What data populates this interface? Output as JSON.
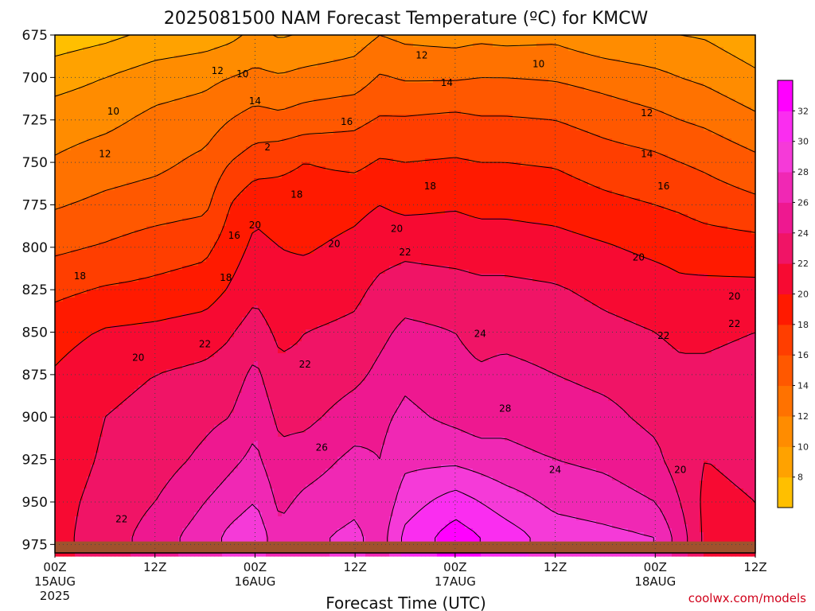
{
  "chart_data": {
    "type": "heatmap",
    "title": "2025081500 NAM Forecast Temperature (ºC) for KMCW",
    "xlabel": "Forecast Time (UTC)",
    "ylabel": "",
    "credit": "coolwx.com/models",
    "y_axis": {
      "reversed": true,
      "range": [
        675,
        980
      ],
      "ticks": [
        675,
        700,
        725,
        750,
        775,
        800,
        825,
        850,
        875,
        900,
        925,
        950,
        975
      ],
      "tick_labels": [
        "675",
        "700",
        "725",
        "750",
        "775",
        "800",
        "825",
        "850",
        "875",
        "900",
        "925",
        "950",
        "975"
      ]
    },
    "x_axis": {
      "range_hours": [
        0,
        84
      ],
      "grid": "dotted",
      "ticks": [
        {
          "hour": 0,
          "label": "00Z",
          "date": "15AUG",
          "year": "2025"
        },
        {
          "hour": 12,
          "label": "12Z",
          "date": "",
          "year": ""
        },
        {
          "hour": 24,
          "label": "00Z",
          "date": "16AUG",
          "year": ""
        },
        {
          "hour": 36,
          "label": "12Z",
          "date": "",
          "year": ""
        },
        {
          "hour": 48,
          "label": "00Z",
          "date": "17AUG",
          "year": ""
        },
        {
          "hour": 60,
          "label": "12Z",
          "date": "",
          "year": ""
        },
        {
          "hour": 72,
          "label": "00Z",
          "date": "18AUG",
          "year": ""
        },
        {
          "hour": 84,
          "label": "12Z",
          "date": "",
          "year": ""
        }
      ]
    },
    "colorbar": {
      "levels": [
        6,
        8,
        10,
        12,
        14,
        16,
        18,
        20,
        22,
        24,
        26,
        28,
        30,
        32,
        34
      ],
      "labels": [
        "8",
        "10",
        "12",
        "14",
        "16",
        "18",
        "20",
        "22",
        "24",
        "26",
        "28",
        "30",
        "32"
      ],
      "colors": [
        "#ffbf00",
        "#ffa200",
        "#ff8c00",
        "#ff7200",
        "#ff5800",
        "#ff3e00",
        "#ff1a00",
        "#f70a32",
        "#f01466",
        "#ee1890",
        "#f028b4",
        "#f53ad8",
        "#fa2df0",
        "#ff00ff"
      ]
    },
    "ground_color": "#a0522d",
    "ground_pressure_hpa": 970,
    "temperature_profile": {
      "pressure_hpa": [
        675,
        700,
        725,
        750,
        775,
        800,
        825,
        850,
        875,
        900,
        925,
        950,
        970
      ],
      "hours": [
        0,
        6,
        12,
        18,
        21,
        24,
        27,
        30,
        36,
        39,
        42,
        48,
        51,
        54,
        60,
        66,
        72,
        75,
        78,
        84
      ],
      "values": [
        [
          6.8,
          7.5,
          8.5,
          9,
          9.5,
          10.5,
          9.8,
          10.2,
          11,
          12,
          11.5,
          11.2,
          11.5,
          11.3,
          11.5,
          10.5,
          10.2,
          10,
          9.8,
          8.6
        ],
        [
          9.2,
          10,
          11,
          11.5,
          12,
          12.5,
          12.2,
          12.6,
          13,
          14.2,
          13.8,
          13.8,
          14,
          14,
          13.8,
          13.2,
          12.5,
          12,
          11.6,
          10.4
        ],
        [
          11,
          11.5,
          12.5,
          13,
          14,
          14.8,
          14.5,
          15,
          15.5,
          16.2,
          16.2,
          16.5,
          16.2,
          16.2,
          16,
          15.2,
          14.5,
          14,
          13.6,
          12.4
        ],
        [
          12.2,
          13,
          13.5,
          14.5,
          16,
          17,
          17.5,
          18,
          17.5,
          18.2,
          18,
          18.2,
          18,
          18,
          17.8,
          17,
          16.5,
          16,
          15.6,
          14.5
        ],
        [
          13.8,
          14.5,
          15,
          15.5,
          18,
          19.5,
          19,
          19,
          19.5,
          20,
          19.5,
          19.8,
          19.5,
          19.5,
          19.2,
          18.5,
          18,
          17.7,
          17.2,
          16.5
        ],
        [
          15.6,
          16.2,
          17,
          17.5,
          19,
          20.5,
          20,
          19.8,
          20.5,
          21.2,
          21.5,
          21.2,
          21,
          21,
          20.8,
          20.2,
          19.5,
          19.2,
          19,
          18.8
        ],
        [
          17.5,
          18.2,
          18.5,
          19,
          20.2,
          21.5,
          20.5,
          20.8,
          21.5,
          22.5,
          23,
          22.8,
          22.5,
          22.5,
          22.2,
          21.5,
          21,
          20.5,
          20.5,
          20.5
        ],
        [
          19.2,
          20.2,
          20.5,
          21,
          21.8,
          23,
          21.5,
          22,
          22.5,
          23.5,
          24.5,
          24,
          23.5,
          23.5,
          23.2,
          22.5,
          22,
          21.5,
          21.5,
          22
        ],
        [
          20.2,
          21.5,
          22,
          22.5,
          23,
          24.5,
          22.5,
          22.5,
          23.5,
          24.5,
          25.5,
          24.5,
          24.2,
          24.5,
          24,
          23.5,
          23,
          22.5,
          22.5,
          23
        ],
        [
          21,
          22,
          22.5,
          23.5,
          24,
          25.5,
          23.5,
          23.5,
          25,
          25.5,
          26.5,
          25.5,
          25,
          25.5,
          25,
          24.5,
          23.5,
          23,
          23,
          23.5
        ],
        [
          21.2,
          22.2,
          23,
          24.5,
          25.5,
          26.5,
          24.5,
          25,
          26.5,
          26,
          27.5,
          27.5,
          27,
          26.5,
          26,
          25.5,
          24.5,
          23,
          22,
          22.5
        ],
        [
          21.5,
          22.5,
          24,
          26,
          27,
          28,
          25.5,
          26.5,
          27.5,
          26.5,
          29,
          31,
          30,
          29,
          27.5,
          27,
          26,
          24,
          21.5,
          22
        ],
        [
          21.5,
          22.8,
          25,
          27,
          28.5,
          29.5,
          26.5,
          27.5,
          28.5,
          27,
          30.5,
          33,
          32,
          31,
          29,
          28.5,
          28,
          25,
          21.5,
          21.8
        ]
      ]
    },
    "contour_labels": [
      {
        "text": "12",
        "hour": 19.5,
        "p": 696
      },
      {
        "text": "10",
        "hour": 22.5,
        "p": 698
      },
      {
        "text": "12",
        "hour": 44,
        "p": 687
      },
      {
        "text": "10",
        "hour": 58,
        "p": 692
      },
      {
        "text": "14",
        "hour": 47,
        "p": 703
      },
      {
        "text": "10",
        "hour": 7,
        "p": 720
      },
      {
        "text": "14",
        "hour": 24,
        "p": 714
      },
      {
        "text": "12",
        "hour": 71,
        "p": 721
      },
      {
        "text": "16",
        "hour": 35,
        "p": 726
      },
      {
        "text": "12",
        "hour": 6,
        "p": 745
      },
      {
        "text": "2",
        "hour": 25.5,
        "p": 741
      },
      {
        "text": "14",
        "hour": 71,
        "p": 745
      },
      {
        "text": "18",
        "hour": 29,
        "p": 769
      },
      {
        "text": "18",
        "hour": 45,
        "p": 764
      },
      {
        "text": "16",
        "hour": 73,
        "p": 764
      },
      {
        "text": "20",
        "hour": 24,
        "p": 787
      },
      {
        "text": "16",
        "hour": 21.5,
        "p": 793
      },
      {
        "text": "20",
        "hour": 41,
        "p": 789
      },
      {
        "text": "20",
        "hour": 33.5,
        "p": 798
      },
      {
        "text": "22",
        "hour": 42,
        "p": 803
      },
      {
        "text": "20",
        "hour": 70,
        "p": 806
      },
      {
        "text": "18",
        "hour": 3,
        "p": 817
      },
      {
        "text": "18",
        "hour": 20.5,
        "p": 818
      },
      {
        "text": "20",
        "hour": 81.5,
        "p": 829
      },
      {
        "text": "22",
        "hour": 81.5,
        "p": 845
      },
      {
        "text": "24",
        "hour": 51,
        "p": 851
      },
      {
        "text": "22",
        "hour": 73,
        "p": 852
      },
      {
        "text": "22",
        "hour": 18,
        "p": 857
      },
      {
        "text": "22",
        "hour": 30,
        "p": 869
      },
      {
        "text": "20",
        "hour": 10,
        "p": 865
      },
      {
        "text": "28",
        "hour": 54,
        "p": 895
      },
      {
        "text": "26",
        "hour": 32,
        "p": 918
      },
      {
        "text": "24",
        "hour": 60,
        "p": 931
      },
      {
        "text": "20",
        "hour": 75,
        "p": 931
      },
      {
        "text": "22",
        "hour": 8,
        "p": 960
      }
    ]
  }
}
